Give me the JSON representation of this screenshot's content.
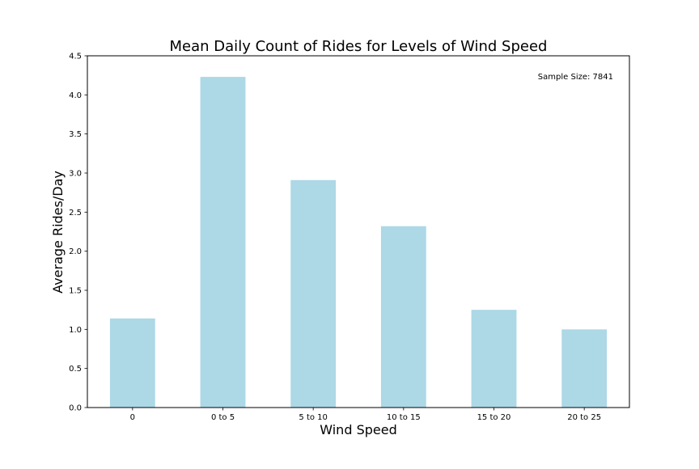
{
  "chart_data": {
    "type": "bar",
    "title": "Mean Daily Count of Rides for Levels of Wind Speed",
    "xlabel": "Wind Speed",
    "ylabel": "Average Rides/Day",
    "categories": [
      "0",
      "0 to 5",
      "5 to 10",
      "10 to 15",
      "15 to 20",
      "20 to 25"
    ],
    "values": [
      1.14,
      4.23,
      2.91,
      2.32,
      1.25,
      1.0
    ],
    "ylim": [
      0,
      4.5
    ],
    "yticks": [
      "0.0",
      "0.5",
      "1.0",
      "1.5",
      "2.0",
      "2.5",
      "3.0",
      "3.5",
      "4.0",
      "4.5"
    ],
    "annotation": "Sample Size: 7841",
    "bar_color": "#add8e6",
    "grid": false,
    "legend": "none"
  }
}
